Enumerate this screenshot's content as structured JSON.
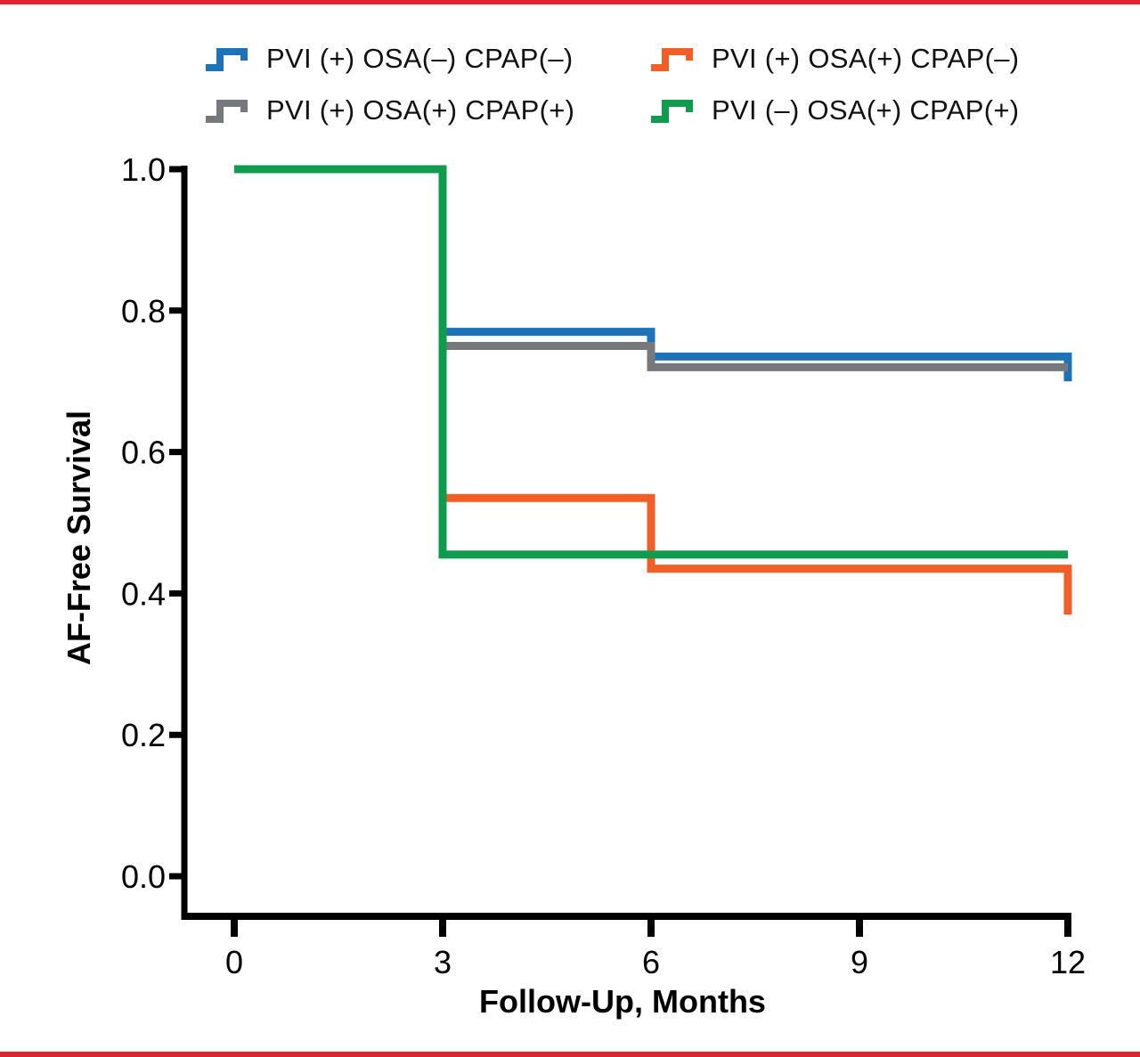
{
  "figure": {
    "background": "#FFFFFF",
    "top_rule_color": "#DD2430",
    "bottom_rule_color": "#DD2430"
  },
  "chart_data": {
    "type": "line",
    "subtype": "kaplan-meier-step",
    "title": "",
    "xlabel": "Follow-Up, Months",
    "ylabel": "AF-Free Survival",
    "xlim": [
      0,
      12
    ],
    "ylim": [
      0.0,
      1.0
    ],
    "x_ticks": [
      0,
      3,
      6,
      9,
      12
    ],
    "y_ticks": [
      "1.0",
      "0.8",
      "0.6",
      "0.4",
      "0.2",
      "0.0"
    ],
    "grid": false,
    "legend_position": "top",
    "axis_color": "#000000",
    "series": [
      {
        "id": "pvi-pos-osa-neg-cpap-neg",
        "name": "PVI (+) OSA(–) CPAP(–)",
        "color": "#1E73B8",
        "steps": [
          [
            0,
            1.0
          ],
          [
            3,
            0.77
          ],
          [
            6,
            0.735
          ],
          [
            12,
            0.7
          ]
        ]
      },
      {
        "id": "pvi-pos-osa-pos-cpap-pos",
        "name": "PVI (+) OSA(+) CPAP(+)",
        "color": "#77787C",
        "steps": [
          [
            0,
            1.0
          ],
          [
            3,
            0.75
          ],
          [
            6,
            0.72
          ],
          [
            12,
            0.72
          ]
        ]
      },
      {
        "id": "pvi-pos-osa-pos-cpap-neg",
        "name": "PVI (+) OSA(+) CPAP(–)",
        "color": "#F15E28",
        "steps": [
          [
            0,
            1.0
          ],
          [
            3,
            0.535
          ],
          [
            6,
            0.435
          ],
          [
            12,
            0.37
          ]
        ]
      },
      {
        "id": "pvi-neg-osa-pos-cpap-pos",
        "name": "PVI (–) OSA(+) CPAP(+)",
        "color": "#109C4E",
        "steps": [
          [
            0,
            1.0
          ],
          [
            3,
            0.455
          ],
          [
            12,
            0.455
          ]
        ]
      }
    ]
  }
}
